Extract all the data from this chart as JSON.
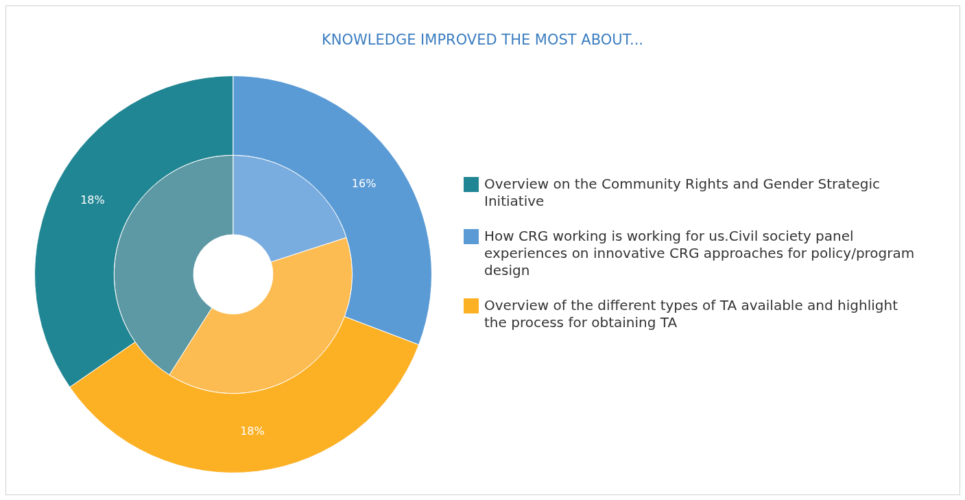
{
  "chart_data": {
    "type": "donut",
    "title": "KNOWLEDGE IMPROVED THE MOST ABOUT...",
    "categories": [
      "Overview on the Community Rights and Gender Strategic Initiative",
      "How CRG working is working for us.Civil society panel experiences on innovative CRG approaches for policy/program design",
      "Overview of the different types of TA available and highlight the process for obtaining TA"
    ],
    "series": [
      {
        "values": [
          18,
          16,
          18
        ],
        "value_labels": [
          "18%",
          "16%",
          "18%"
        ],
        "colors": [
          "#218693",
          "#5b9bd5",
          "#fcb024"
        ]
      },
      {
        "values": [
          41,
          20,
          39
        ],
        "colors": [
          "#5c99a4",
          "#7aaddf",
          "#fdbc52"
        ]
      }
    ],
    "legend": "right"
  }
}
